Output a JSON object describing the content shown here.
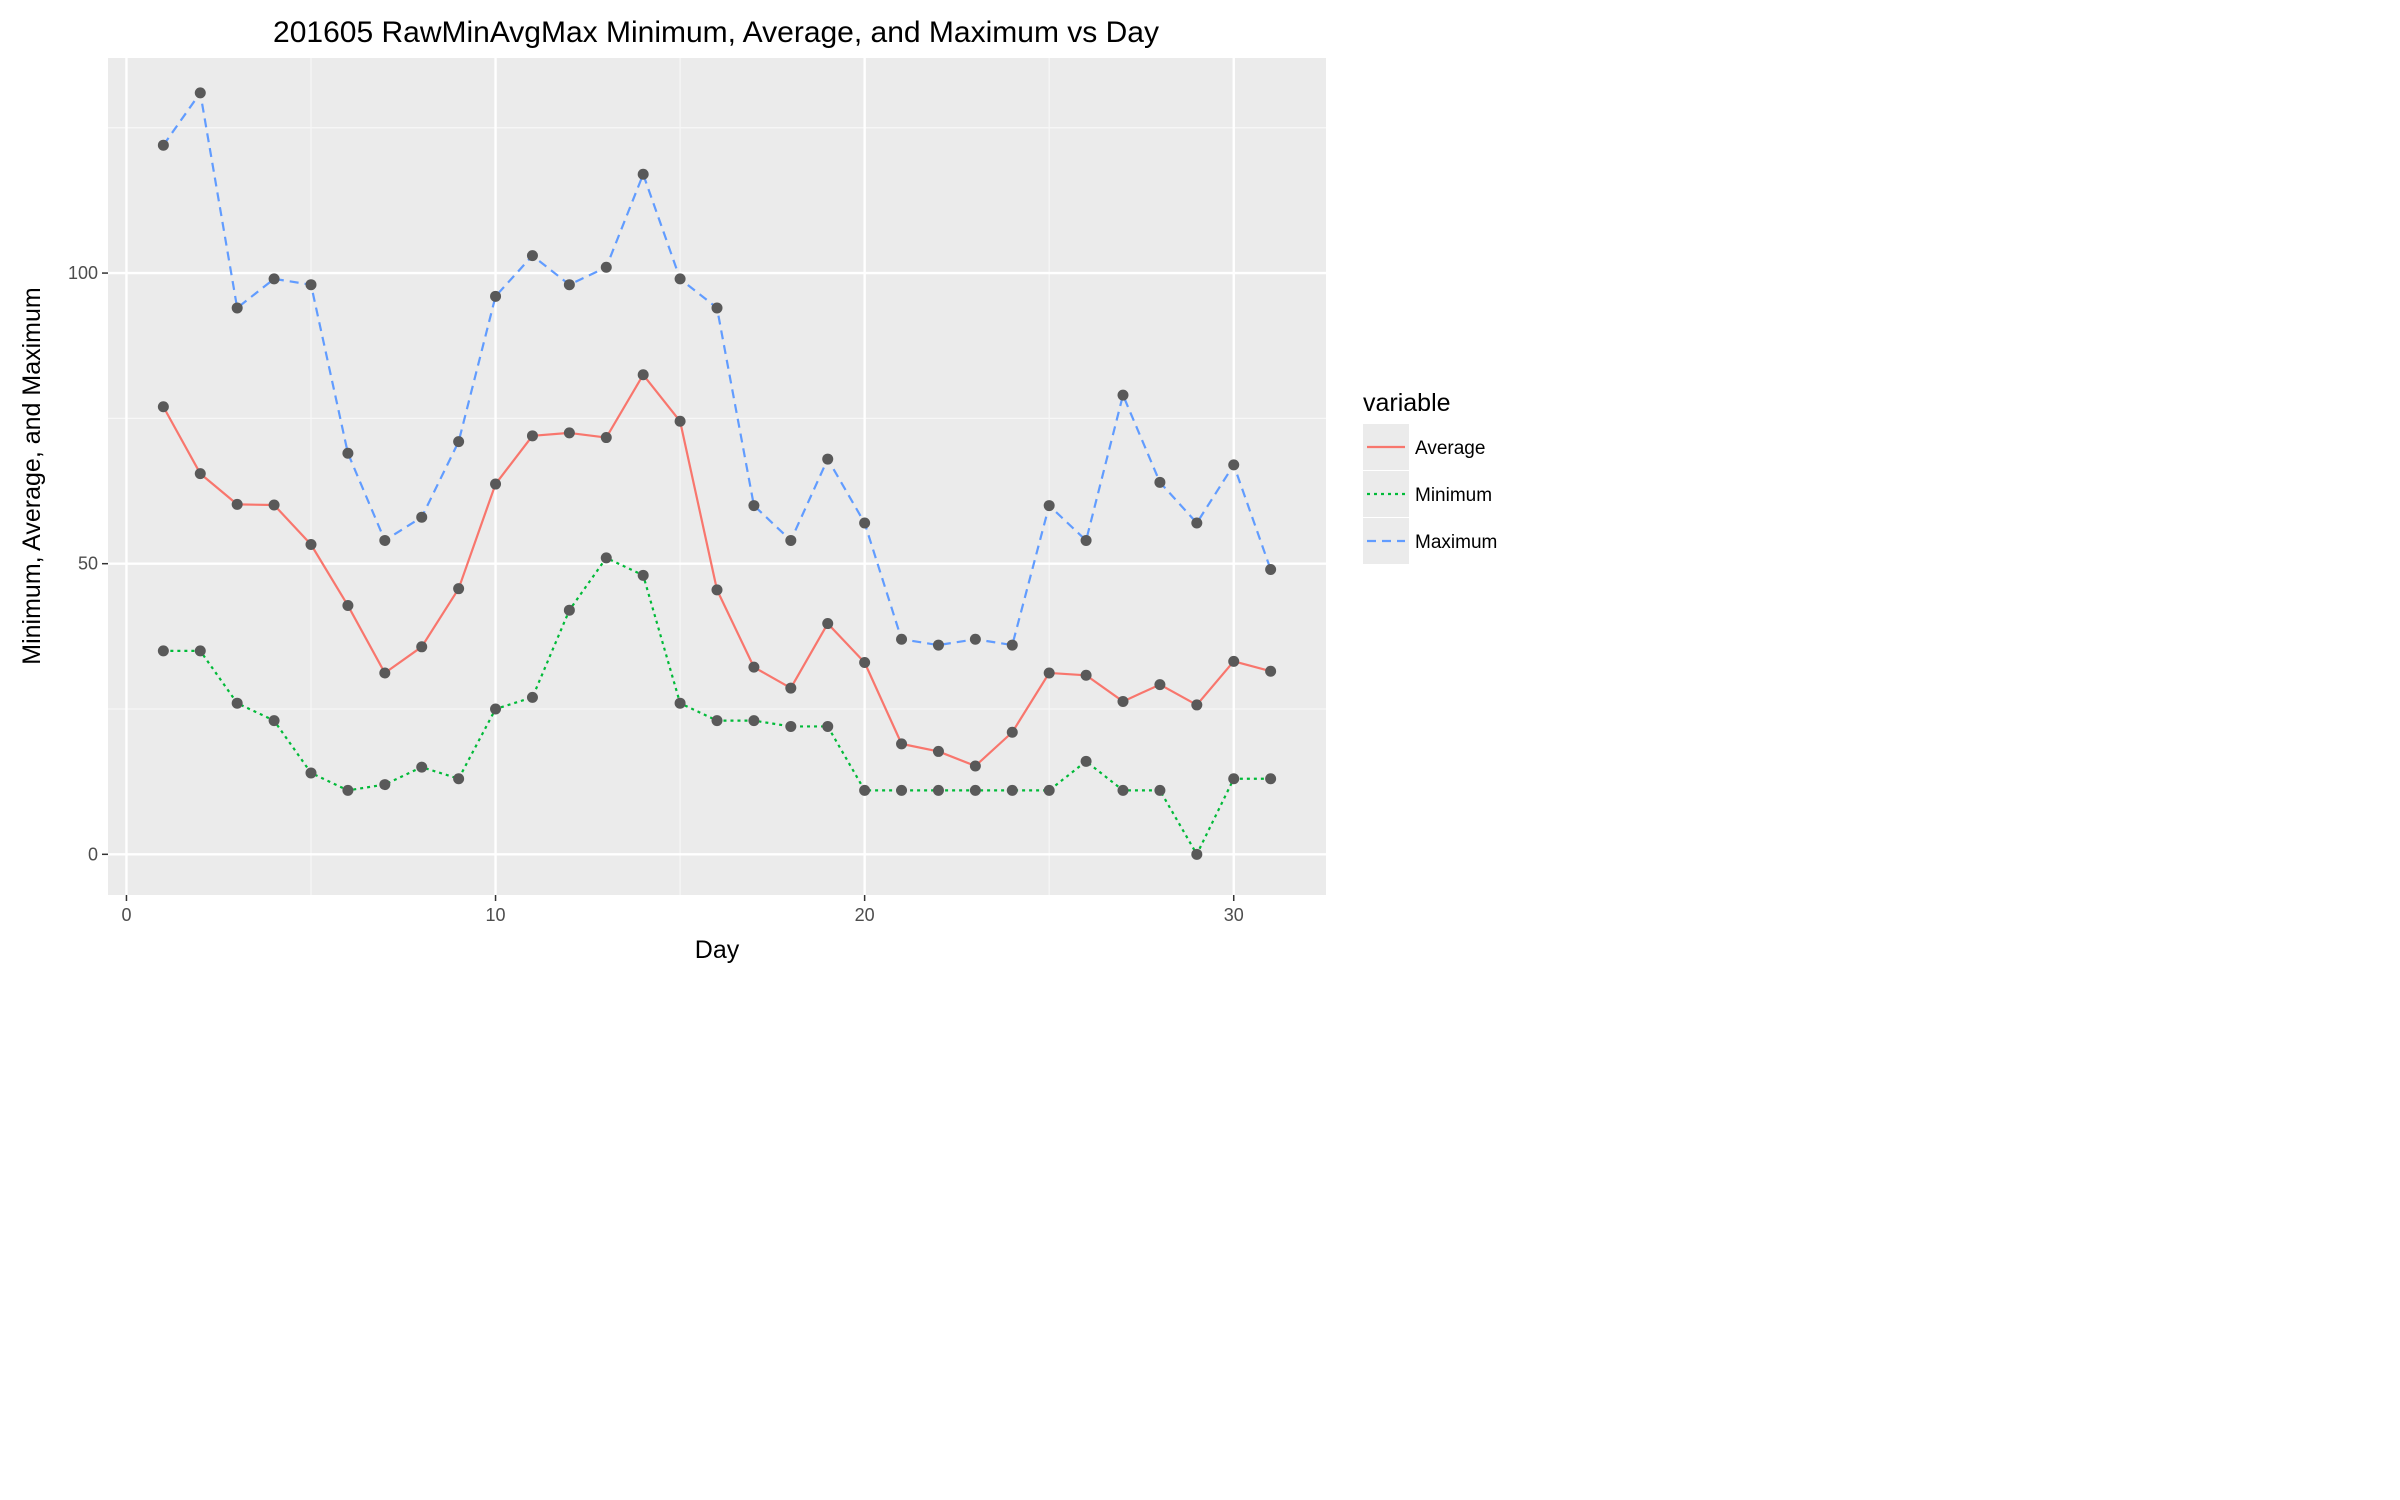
{
  "chart_data": {
    "type": "line",
    "title": "201605 RawMinAvgMax Minimum, Average, and Maximum vs Day",
    "xlabel": "Day",
    "ylabel": "Minimum, Average, and Maximum",
    "xlim": [
      -0.5,
      32.5
    ],
    "ylim": [
      -7,
      137
    ],
    "x_ticks": [
      0,
      10,
      20,
      30
    ],
    "x_tick_labels": [
      "0",
      "10",
      "20",
      "30"
    ],
    "x_minor_ticks": [
      5,
      15,
      25
    ],
    "y_ticks": [
      0,
      50,
      100
    ],
    "y_tick_labels": [
      "0",
      "50",
      "100"
    ],
    "y_minor_ticks": [
      25,
      75,
      125
    ],
    "grid": true,
    "legend_title": "variable",
    "legend_position": "right",
    "x": [
      1,
      2,
      3,
      4,
      5,
      6,
      7,
      8,
      9,
      10,
      11,
      12,
      13,
      14,
      15,
      16,
      17,
      18,
      19,
      20,
      21,
      22,
      23,
      24,
      25,
      26,
      27,
      28,
      29,
      30,
      31
    ],
    "series": [
      {
        "name": "Average",
        "color": "#F8766D",
        "dash": "solid",
        "values": [
          77,
          65.5,
          60.2,
          60.1,
          53.3,
          42.8,
          31.2,
          35.7,
          45.7,
          63.7,
          72,
          72.5,
          71.7,
          82.5,
          74.5,
          45.5,
          32.2,
          28.6,
          39.7,
          33,
          19,
          17.7,
          15.2,
          21,
          31.2,
          30.8,
          26.3,
          29.2,
          25.7,
          33.2,
          31.5
        ]
      },
      {
        "name": "Minimum",
        "color": "#00BA38",
        "dash": "dotted",
        "values": [
          35,
          35,
          26,
          23,
          14,
          11,
          12,
          15,
          13,
          25,
          27,
          42,
          51,
          48,
          26,
          23,
          23,
          22,
          22,
          11,
          11,
          11,
          11,
          11,
          11,
          16,
          11,
          11,
          0,
          13,
          13
        ]
      },
      {
        "name": "Maximum",
        "color": "#619CFF",
        "dash": "dashed",
        "values": [
          122,
          131,
          94,
          99,
          98,
          69,
          54,
          58,
          71,
          96,
          103,
          98,
          101,
          117,
          99,
          94,
          60,
          54,
          68,
          57,
          37,
          36,
          37,
          36,
          60,
          54,
          79,
          64,
          57,
          67,
          49
        ]
      }
    ],
    "point_color": "#595959"
  }
}
